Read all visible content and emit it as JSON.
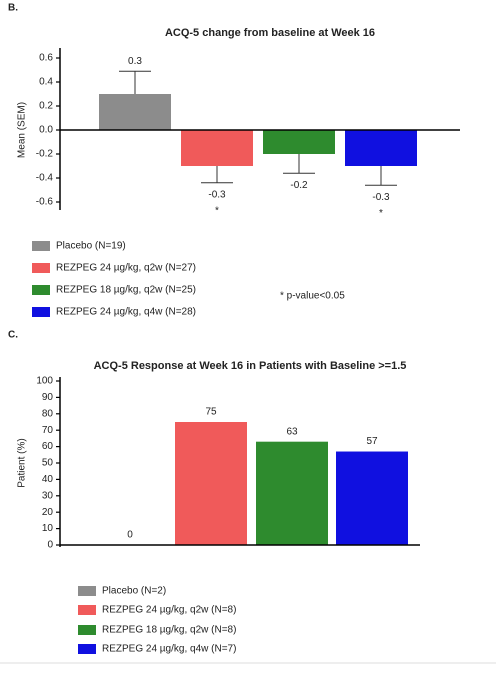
{
  "chart_data": [
    {
      "type": "bar",
      "panel_label": "B.",
      "title": "ACQ-5 change from baseline at Week 16",
      "ylabel": "Mean (SEM)",
      "ylim": [
        -0.65,
        0.65
      ],
      "yticks": [
        -0.6,
        -0.4,
        -0.2,
        {
          "value": 0,
          "label": "0.0"
        },
        0.2,
        0.4,
        0.6
      ],
      "series": [
        {
          "name": "Placebo (N=19)",
          "color": "#8c8c8c",
          "values": [
            0.3
          ],
          "errors": [
            0.19
          ]
        },
        {
          "name": "REZPEG 24 µg/kg, q2w (N=27)",
          "color": "#f05a5a",
          "values": [
            -0.3
          ],
          "errors": [
            0.14
          ],
          "significance_labels": [
            "*"
          ]
        },
        {
          "name": "REZPEG 18 µg/kg, q2w (N=25)",
          "color": "#2e8b2e",
          "values": [
            -0.2
          ],
          "errors": [
            0.16
          ]
        },
        {
          "name": "REZPEG 24 µg/kg, q4w (N=28)",
          "color": "#1010e0",
          "values": [
            -0.3
          ],
          "errors": [
            0.16
          ],
          "significance_labels": [
            "*"
          ]
        }
      ],
      "annotation": "* p-value<0.05",
      "legend": "bottom"
    },
    {
      "type": "bar",
      "panel_label": "C.",
      "title": "ACQ-5 Response at Week 16 in Patients with Baseline >=1.5",
      "ylabel": "Patient (%)",
      "ylim": [
        0,
        100
      ],
      "yticks": [
        0,
        10,
        20,
        30,
        40,
        50,
        60,
        70,
        80,
        90,
        100
      ],
      "series": [
        {
          "name": "Placebo (N=2)",
          "color": "#8c8c8c",
          "values": [
            0
          ]
        },
        {
          "name": "REZPEG 24 µg/kg, q2w (N=8)",
          "color": "#f05a5a",
          "values": [
            75
          ]
        },
        {
          "name": "REZPEG 18 µg/kg, q2w (N=8)",
          "color": "#2e8b2e",
          "values": [
            63
          ]
        },
        {
          "name": "REZPEG 24 µg/kg, q4w (N=7)",
          "color": "#1010e0",
          "values": [
            57
          ]
        }
      ],
      "legend": "bottom"
    }
  ]
}
